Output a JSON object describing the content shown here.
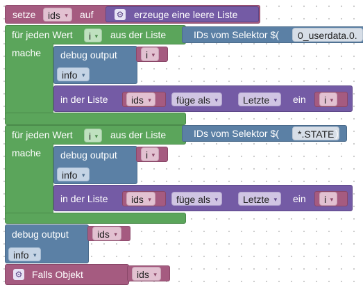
{
  "blocks": {
    "setze": {
      "setze": "setze",
      "var": "ids",
      "auf": "auf",
      "erzeuge": "erzeuge eine leere Liste"
    },
    "loop1": {
      "fuer": "für jeden Wert",
      "var": "i",
      "aus": "aus der Liste",
      "ids_vom": "IDs vom Selektor $(",
      "selector": "0_userdata.0.",
      "mache": "mache",
      "debug": {
        "label": "debug output",
        "var": "i",
        "level": "info"
      },
      "list": {
        "label": "in der Liste",
        "list": "ids",
        "fuege": "füge als",
        "pos": "Letzte",
        "ein": "ein",
        "var": "i"
      }
    },
    "loop2": {
      "fuer": "für jeden Wert",
      "var": "i",
      "aus": "aus der Liste",
      "ids_vom": "IDs vom Selektor $(",
      "selector": "*.STATE",
      "close": ")",
      "mache": "mache",
      "debug": {
        "label": "debug output",
        "var": "i",
        "level": "info"
      },
      "list": {
        "label": "in der Liste",
        "list": "ids",
        "fuege": "füge als",
        "pos": "Letzte",
        "ein": "ein",
        "var": "i"
      }
    },
    "debug3": {
      "label": "debug output",
      "var": "ids",
      "level": "info"
    },
    "falls": {
      "label": "Falls Objekt",
      "var": "ids"
    }
  },
  "dropdown_arrow": "▾",
  "gear_icon": "⚙"
}
